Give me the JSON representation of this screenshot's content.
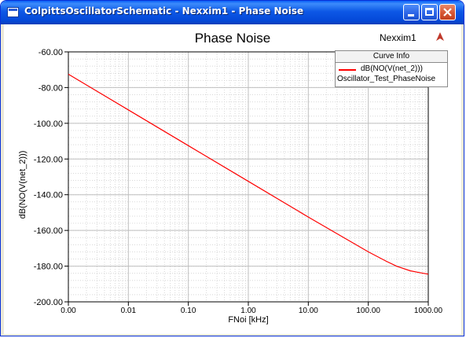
{
  "window": {
    "title": "ColpittsOscillatorSchematic - Nexxim1 - Phase Noise",
    "icons": {
      "minimize": "minimize-icon",
      "maximize": "maximize-icon",
      "close": "close-icon"
    },
    "titlebar_color": "#0448d8",
    "close_color": "#d65634"
  },
  "plot": {
    "solver_label": "Nexxim1",
    "solver_icon": "ansoft-logo-icon",
    "curve_info": {
      "header": "Curve Info",
      "expression": "dB(NO(V(net_2)))",
      "series_name": "Oscillator_Test_PhaseNoise"
    }
  },
  "chart_data": {
    "type": "line",
    "title": "Phase Noise",
    "xlabel": "FNoi [kHz]",
    "ylabel": "dB(NO(V(net_2)))",
    "x_scale": "log",
    "x_tick_labels": [
      "0.00",
      "0.01",
      "0.10",
      "1.00",
      "10.00",
      "100.00",
      "1000.00"
    ],
    "y_tick_labels": [
      "-60.00",
      "-80.00",
      "-100.00",
      "-120.00",
      "-140.00",
      "-160.00",
      "-180.00",
      "-200.00"
    ],
    "ylim": [
      -200,
      -60
    ],
    "grid": true,
    "legend_position": "top-right",
    "series": [
      {
        "name": "dB(NO(V(net_2)))",
        "color": "#ff0000",
        "x": [
          0.001,
          0.01,
          0.1,
          1,
          10,
          100,
          200,
          300,
          500,
          700,
          1000
        ],
        "y": [
          -72.5,
          -92.5,
          -112.5,
          -132.5,
          -152.5,
          -172.0,
          -177.3,
          -180.1,
          -182.6,
          -183.6,
          -184.5
        ]
      }
    ]
  }
}
